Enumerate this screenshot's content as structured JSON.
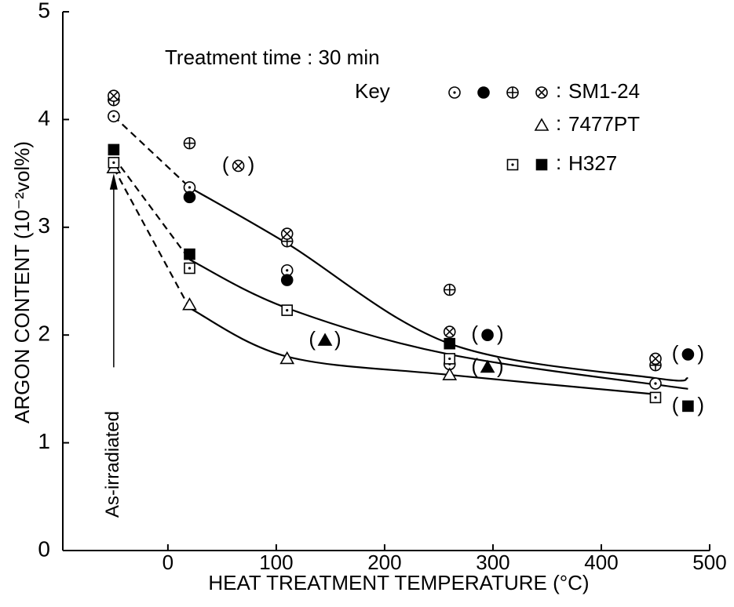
{
  "chart_data": {
    "type": "scatter",
    "annotation": "Treatment  time : 30 min",
    "as_irradiated_label": "As-irradiated",
    "as_irradiated_x": -50,
    "x_label": "HEAT  TREATMENT  TEMPERATURE  (°C)",
    "y_label": "ARGON  CONTENT  (10⁻²vol%)",
    "xlim": [
      -97,
      500
    ],
    "ylim": [
      0,
      5
    ],
    "xticks": [
      0,
      100,
      200,
      300,
      400,
      500
    ],
    "yticks": [
      0,
      1,
      2,
      3,
      4,
      5
    ],
    "legend_title": "Key",
    "legend_separator": ":",
    "brackets": [
      "(",
      ")"
    ],
    "color": "#000000",
    "series": [
      {
        "name": "SM1-24",
        "marker": "circle-dot",
        "bracketed": false,
        "x": [
          -50,
          20,
          110,
          260,
          450
        ],
        "values": [
          4.03,
          3.37,
          2.6,
          1.73,
          1.55
        ]
      },
      {
        "name": "SM1-24",
        "marker": "circle-filled",
        "bracketed": false,
        "x": [
          20,
          110
        ],
        "values": [
          3.28,
          2.51
        ]
      },
      {
        "name": "SM1-24",
        "marker": "circle-plus",
        "bracketed": false,
        "x": [
          -50,
          20,
          110,
          260,
          450
        ],
        "values": [
          4.18,
          3.78,
          2.87,
          2.42,
          1.72
        ]
      },
      {
        "name": "SM1-24",
        "marker": "circle-cross",
        "bracketed": false,
        "x": [
          -50,
          110,
          260,
          450
        ],
        "values": [
          4.22,
          2.94,
          2.03,
          1.78
        ]
      },
      {
        "name": "SM1-24",
        "marker": "circle-filled",
        "bracketed": true,
        "x": [
          295,
          480
        ],
        "values": [
          2.0,
          1.82
        ]
      },
      {
        "name": "SM1-24",
        "marker": "circle-cross",
        "bracketed": true,
        "x": [
          65
        ],
        "values": [
          3.57
        ]
      },
      {
        "name": "7477PT",
        "marker": "triangle-open",
        "bracketed": false,
        "x": [
          -50,
          20,
          110,
          260
        ],
        "values": [
          3.55,
          2.28,
          1.78,
          1.63
        ]
      },
      {
        "name": "7477PT",
        "marker": "triangle-filled",
        "bracketed": true,
        "x": [
          145,
          295
        ],
        "values": [
          1.95,
          1.7
        ]
      },
      {
        "name": "H327",
        "marker": "square-dot",
        "bracketed": false,
        "x": [
          -50,
          20,
          110,
          260,
          450
        ],
        "values": [
          3.6,
          2.62,
          2.23,
          1.78,
          1.42
        ]
      },
      {
        "name": "H327",
        "marker": "square-filled",
        "bracketed": false,
        "x": [
          -50,
          20,
          260
        ],
        "values": [
          3.72,
          2.75,
          1.92
        ]
      },
      {
        "name": "H327",
        "marker": "square-filled",
        "bracketed": true,
        "x": [
          480
        ],
        "values": [
          1.34
        ]
      }
    ],
    "curves": [
      {
        "style": "dashed",
        "x": [
          -50,
          20
        ],
        "y": [
          4.03,
          3.37
        ]
      },
      {
        "style": "solid",
        "x": [
          20,
          110,
          260,
          450,
          480
        ],
        "y": [
          3.37,
          2.85,
          1.92,
          1.6,
          1.6
        ]
      },
      {
        "style": "dashed",
        "x": [
          -50,
          20
        ],
        "y": [
          3.65,
          2.7
        ]
      },
      {
        "style": "solid",
        "x": [
          20,
          110,
          260,
          480
        ],
        "y": [
          2.7,
          2.25,
          1.82,
          1.5
        ]
      },
      {
        "style": "dashed",
        "x": [
          -50,
          20
        ],
        "y": [
          3.55,
          2.25
        ]
      },
      {
        "style": "solid",
        "x": [
          20,
          110,
          260,
          450
        ],
        "y": [
          2.25,
          1.8,
          1.63,
          1.45
        ]
      }
    ]
  }
}
